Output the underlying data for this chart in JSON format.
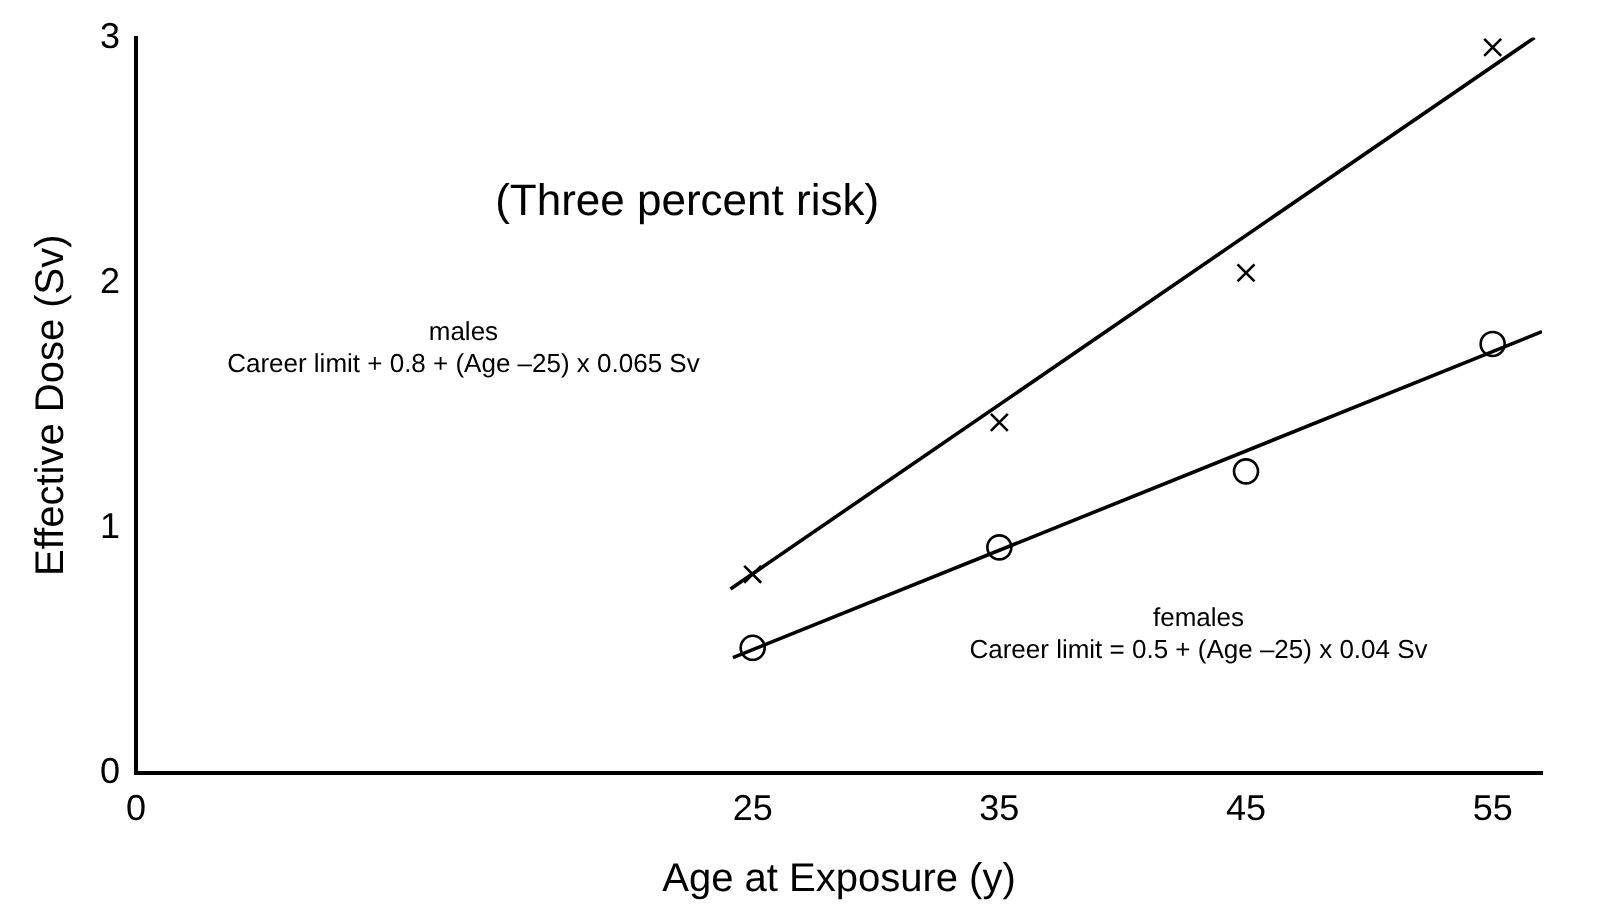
{
  "chart_data": {
    "type": "scatter",
    "xlabel": "Age at Exposure (y)",
    "ylabel": "Effective Dose (Sv)",
    "x": [
      25,
      35,
      45,
      55
    ],
    "series": [
      {
        "name": null,
        "type": "scatter",
        "marker": "cross",
        "color": "#000000",
        "values": [
          0.81,
          1.43,
          2.04,
          2.96
        ]
      },
      {
        "name": null,
        "type": "scatter",
        "marker": "circle",
        "color": "#000000",
        "values": [
          0.51,
          0.92,
          1.23,
          1.75
        ]
      },
      {
        "type": "line",
        "marker": "none",
        "color": "#000000",
        "x": [
          24.1,
          56.7
        ],
        "values": [
          0.75,
          3.0
        ]
      },
      {
        "type": "line",
        "marker": "none",
        "color": "#000000",
        "x": [
          24.2,
          57
        ],
        "values": [
          0.47,
          1.8
        ]
      }
    ],
    "xlim": [
      0,
      57
    ],
    "xticks": [
      0,
      25,
      35,
      45,
      55
    ],
    "ylim": [
      0,
      3
    ],
    "yticks": [
      0,
      1,
      2,
      3
    ],
    "grid": false,
    "legend": false,
    "annotations": [
      "(Three percent risk)",
      "males\nCareer limit + 0.8 + (Age –25) x 0.065 Sv",
      "females\nCareer limit = 0.5 + (Age –25) x 0.04 Sv"
    ]
  }
}
